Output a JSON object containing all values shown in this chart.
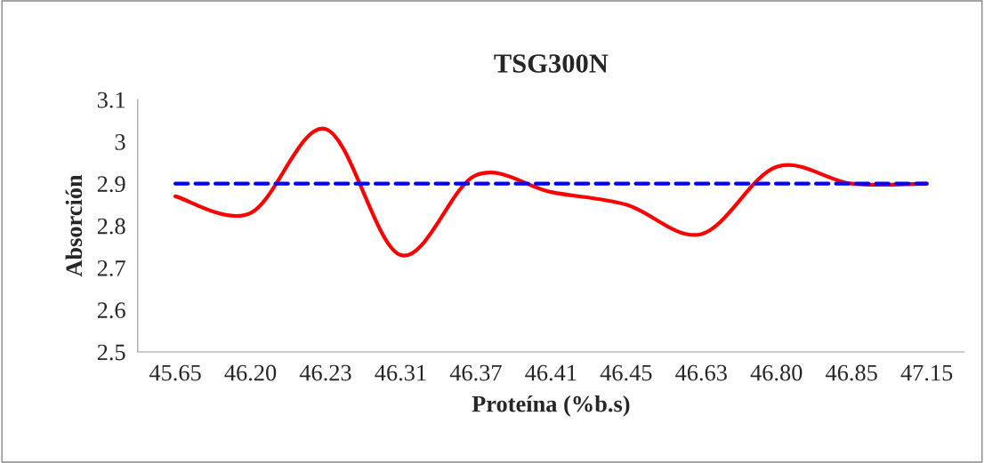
{
  "chart_data": {
    "type": "line",
    "title": "TSG300N",
    "xlabel": "Proteína (%b.s)",
    "ylabel": "Absorción",
    "categories": [
      "45.65",
      "46.20",
      "46.23",
      "46.31",
      "46.37",
      "46.41",
      "46.45",
      "46.63",
      "46.80",
      "46.85",
      "47.15"
    ],
    "series": [
      {
        "color": "#ff0000",
        "line_style": "solid",
        "values": [
          2.87,
          2.83,
          3.03,
          2.73,
          2.92,
          2.88,
          2.85,
          2.78,
          2.94,
          2.9,
          2.9
        ]
      },
      {
        "color": "#0000ff",
        "line_style": "dashed",
        "values": [
          2.9,
          2.9,
          2.9,
          2.9,
          2.9,
          2.9,
          2.9,
          2.9,
          2.9,
          2.9,
          2.9
        ]
      }
    ],
    "ylim": [
      2.5,
      3.1
    ],
    "yticks": [
      2.5,
      2.6,
      2.7,
      2.8,
      2.9,
      {
        "value": 3,
        "label": "3"
      },
      3.1
    ],
    "grid": false,
    "marker": "none"
  }
}
